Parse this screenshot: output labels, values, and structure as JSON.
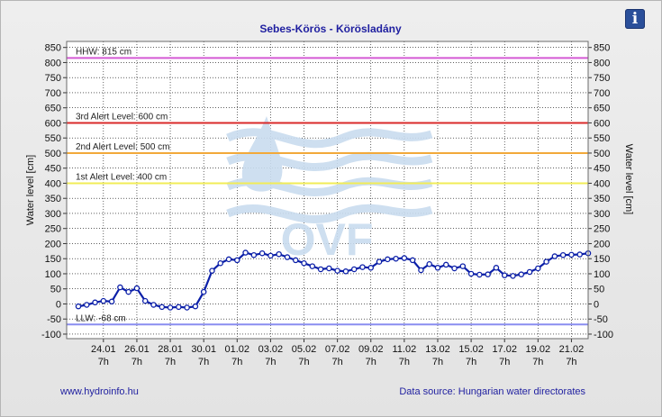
{
  "header": {
    "title": "Sebes-Körös - Körösladány",
    "info_icon": "info-icon",
    "info_glyph": "i"
  },
  "footer": {
    "website": "www.hydroinfo.hu",
    "source": "Data source: Hungarian water directorates"
  },
  "watermark": {
    "text": "OVF"
  },
  "colors": {
    "series": "#0b1fa8",
    "hhw": "#d45ad4",
    "alert3": "#d92a2a",
    "alert2": "#f2a93a",
    "alert1": "#f1ec57",
    "llw": "#8a8ef0",
    "watermark": "#c9dcef",
    "title": "#1f1fa0"
  },
  "chart_data": {
    "type": "line",
    "xlabel": "",
    "ylabel": "Water level [cm]",
    "ylabel_right": "Water level [cm]",
    "ylim": [
      -115,
      870
    ],
    "yticks": [
      -100,
      -50,
      0,
      50,
      100,
      150,
      200,
      250,
      300,
      350,
      400,
      450,
      500,
      550,
      600,
      650,
      700,
      750,
      800,
      850
    ],
    "xlim": [
      -2.2,
      29.0
    ],
    "xticks": [
      {
        "value": 0,
        "date": "24.01",
        "time": "7h"
      },
      {
        "value": 2,
        "date": "26.01",
        "time": "7h"
      },
      {
        "value": 4,
        "date": "28.01",
        "time": "7h"
      },
      {
        "value": 6,
        "date": "30.01",
        "time": "7h"
      },
      {
        "value": 8,
        "date": "01.02",
        "time": "7h"
      },
      {
        "value": 10,
        "date": "03.02",
        "time": "7h"
      },
      {
        "value": 12,
        "date": "05.02",
        "time": "7h"
      },
      {
        "value": 14,
        "date": "07.02",
        "time": "7h"
      },
      {
        "value": 16,
        "date": "09.02",
        "time": "7h"
      },
      {
        "value": 18,
        "date": "11.02",
        "time": "7h"
      },
      {
        "value": 20,
        "date": "13.02",
        "time": "7h"
      },
      {
        "value": 22,
        "date": "15.02",
        "time": "7h"
      },
      {
        "value": 24,
        "date": "17.02",
        "time": "7h"
      },
      {
        "value": 26,
        "date": "19.02",
        "time": "7h"
      },
      {
        "value": 28,
        "date": "21.02",
        "time": "7h"
      }
    ],
    "reference_lines": [
      {
        "label": "HHW: 815 cm",
        "value": 815,
        "color": "#d45ad4"
      },
      {
        "label": "3rd Alert Level: 600 cm",
        "value": 600,
        "color": "#d92a2a"
      },
      {
        "label": "2nd Alert Level: 500 cm",
        "value": 500,
        "color": "#f2a93a"
      },
      {
        "label": "1st Alert Level: 400 cm",
        "value": 400,
        "color": "#f1ec57"
      },
      {
        "label": "LLW: -68 cm",
        "value": -68,
        "color": "#8a8ef0"
      }
    ],
    "series": [
      {
        "x": [
          -1.5,
          -1.0,
          -0.5,
          0.0,
          0.5,
          1.0,
          1.5,
          2.0,
          2.5,
          3.0,
          3.5,
          4.0,
          4.5,
          5.0,
          5.5,
          6.0,
          6.5,
          7.0,
          7.5,
          8.0,
          8.5,
          9.0,
          9.5,
          10.0,
          10.5,
          11.0,
          11.5,
          12.0,
          12.5,
          13.0,
          13.5,
          14.0,
          14.5,
          15.0,
          15.5,
          16.0,
          16.5,
          17.0,
          17.5,
          18.0,
          18.5,
          19.0,
          19.5,
          20.0,
          20.5,
          21.0,
          21.5,
          22.0,
          22.5,
          23.0,
          23.5,
          24.0,
          24.5,
          25.0,
          25.5,
          26.0,
          26.5,
          27.0,
          27.5,
          28.0,
          28.5,
          29.0
        ],
        "values": [
          -8,
          -3,
          5,
          10,
          8,
          55,
          40,
          52,
          10,
          -3,
          -10,
          -12,
          -10,
          -12,
          -8,
          40,
          110,
          135,
          148,
          145,
          170,
          162,
          168,
          160,
          165,
          155,
          145,
          135,
          125,
          115,
          118,
          110,
          108,
          115,
          122,
          120,
          140,
          148,
          150,
          152,
          145,
          112,
          132,
          120,
          130,
          118,
          125,
          100,
          97,
          98,
          120,
          95,
          93,
          98,
          106,
          118,
          140,
          158,
          162,
          163,
          164,
          168
        ]
      }
    ]
  }
}
